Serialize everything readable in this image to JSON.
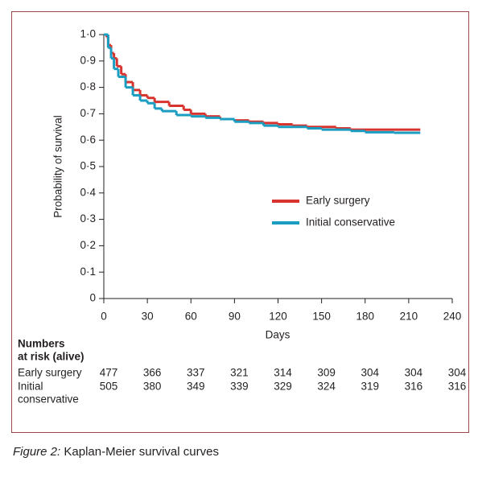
{
  "chart_data": {
    "type": "step",
    "y_label": "Probability of survival",
    "x_label": "Days",
    "xlim": [
      0,
      240
    ],
    "xticks": [
      0,
      30,
      60,
      90,
      120,
      150,
      180,
      210,
      240
    ],
    "ylim": [
      0,
      1
    ],
    "yticks": [
      {
        "value": 0,
        "label": "0"
      },
      {
        "value": 0.1,
        "label": "0·1"
      },
      {
        "value": 0.2,
        "label": "0·2"
      },
      {
        "value": 0.3,
        "label": "0·3"
      },
      {
        "value": 0.4,
        "label": "0·4"
      },
      {
        "value": 0.5,
        "label": "0·5"
      },
      {
        "value": 0.6,
        "label": "0·6"
      },
      {
        "value": 0.7,
        "label": "0·7"
      },
      {
        "value": 0.8,
        "label": "0·8"
      },
      {
        "value": 0.9,
        "label": "0·9"
      },
      {
        "value": 1,
        "label": "1·0"
      }
    ],
    "series": [
      {
        "name": "Early surgery",
        "color": "#d8342f",
        "x": [
          0,
          2,
          3,
          5,
          7,
          9,
          12,
          15,
          20,
          25,
          30,
          35,
          45,
          55,
          60,
          70,
          80,
          90,
          100,
          110,
          120,
          130,
          140,
          160,
          170,
          218
        ],
        "values": [
          1.0,
          0.99,
          0.96,
          0.93,
          0.91,
          0.88,
          0.85,
          0.82,
          0.79,
          0.77,
          0.76,
          0.745,
          0.73,
          0.715,
          0.7,
          0.69,
          0.68,
          0.675,
          0.67,
          0.665,
          0.66,
          0.655,
          0.65,
          0.645,
          0.64,
          0.64
        ]
      },
      {
        "name": "Initial conservative",
        "color": "#1b9cc1",
        "x": [
          0,
          3,
          5,
          7,
          10,
          15,
          20,
          25,
          30,
          35,
          40,
          50,
          60,
          70,
          80,
          90,
          100,
          110,
          120,
          140,
          150,
          170,
          180,
          200,
          218
        ],
        "values": [
          1.0,
          0.95,
          0.91,
          0.87,
          0.84,
          0.8,
          0.77,
          0.75,
          0.74,
          0.72,
          0.71,
          0.695,
          0.69,
          0.685,
          0.68,
          0.67,
          0.665,
          0.655,
          0.65,
          0.645,
          0.64,
          0.635,
          0.63,
          0.628,
          0.628
        ]
      }
    ],
    "risk_table": {
      "title_lines": [
        "Numbers",
        "at risk (alive)"
      ],
      "rows": [
        {
          "label_lines": [
            "Early surgery"
          ],
          "values": [
            477,
            366,
            337,
            321,
            314,
            309,
            304,
            304,
            304
          ]
        },
        {
          "label_lines": [
            "Initial",
            "conservative"
          ],
          "values": [
            505,
            380,
            349,
            339,
            329,
            324,
            319,
            316,
            316
          ]
        }
      ]
    },
    "caption_label": "Figure 2:",
    "caption_text": "Kaplan-Meier survival curves"
  }
}
